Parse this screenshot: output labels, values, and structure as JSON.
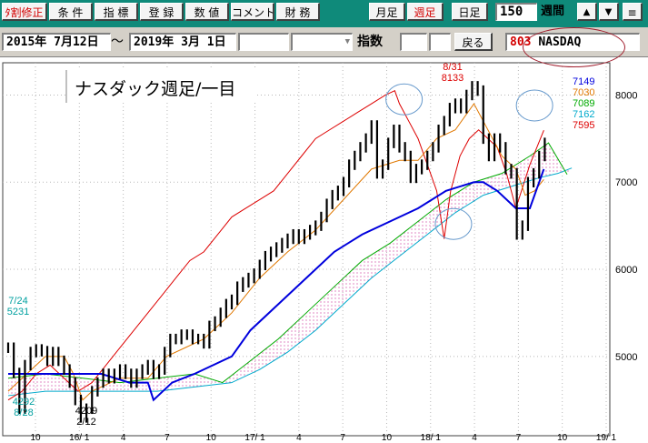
{
  "toolbar": {
    "buttons": [
      {
        "label": "ﾀ割修正",
        "red": true
      },
      {
        "label": "条 件"
      },
      {
        "label": "指 標"
      },
      {
        "label": "登 録"
      },
      {
        "label": "数 値"
      },
      {
        "label": "コメント"
      },
      {
        "label": "財 務"
      },
      {
        "label": "月足"
      },
      {
        "label": "週足",
        "red": true
      },
      {
        "label": "日足"
      }
    ],
    "period_value": "150",
    "period_unit": "週間",
    "up_icon": "▲",
    "down_icon": "▼",
    "menu_icon": "≡"
  },
  "range_bar": {
    "date_from": "2015年 7月12日",
    "tilde": "～",
    "date_to": "2019年 3月 1日",
    "dropdown_icon": "▼",
    "index_label": "指数",
    "back_button": "戻る",
    "code": "803",
    "symbol": "NASDAQ"
  },
  "colors": {
    "toolbar_bg": "#0f8a7a",
    "price_bar": "#000000",
    "ma_short": "#e07800",
    "ma_long": "#0000dd",
    "rsi_like": "#dd0000",
    "span_green": "#00aa00",
    "span_cyan": "#00aacc",
    "cloud": "#cc3399",
    "annotation_circle": "#6699cc"
  },
  "chart_data": {
    "type": "line",
    "title": "ナスダック週足/一目",
    "ylim": [
      4090,
      8370
    ],
    "y_ticks": [
      5000,
      6000,
      7000,
      8000
    ],
    "x_ticks": [
      "10",
      "16/ 1",
      "4",
      "7",
      "10",
      "17/ 1",
      "4",
      "7",
      "10",
      "18/ 1",
      "4",
      "7",
      "10",
      "19/ 1"
    ],
    "legend_values": [
      {
        "value": "7149",
        "color": "#0000dd"
      },
      {
        "value": "7030",
        "color": "#e07800"
      },
      {
        "value": "7089",
        "color": "#00aa00"
      },
      {
        "value": "7162",
        "color": "#00aacc"
      },
      {
        "value": "7595",
        "color": "#dd0000"
      }
    ],
    "annotations": [
      {
        "label": "8/31",
        "value": "8133",
        "color": "#dd0000"
      },
      {
        "label": "4209",
        "value": "2/12",
        "color": "#000000"
      },
      {
        "label": "7/24",
        "value": "5231",
        "color": "#00a0a0"
      },
      {
        "label": "4292",
        "value": "8/28",
        "color": "#00a0a0"
      }
    ],
    "series": [
      {
        "key": "price",
        "weekly_approx": [
          [
            0,
            5100
          ],
          [
            6,
            4810
          ],
          [
            12,
            4400
          ],
          [
            18,
            4900
          ],
          [
            24,
            5050
          ],
          [
            30,
            5080
          ],
          [
            36,
            5060
          ],
          [
            42,
            4950
          ],
          [
            48,
            5050
          ],
          [
            54,
            4950
          ],
          [
            60,
            4850
          ],
          [
            66,
            4700
          ],
          [
            72,
            4500
          ],
          [
            78,
            4300
          ],
          [
            84,
            4400
          ],
          [
            90,
            4600
          ],
          [
            96,
            4700
          ],
          [
            102,
            4800
          ],
          [
            108,
            4750
          ],
          [
            114,
            4800
          ],
          [
            120,
            4850
          ],
          [
            126,
            4800
          ],
          [
            132,
            4700
          ],
          [
            138,
            4800
          ],
          [
            144,
            4850
          ],
          [
            150,
            4900
          ],
          [
            156,
            4800
          ],
          [
            162,
            4850
          ],
          [
            168,
            5050
          ],
          [
            174,
            5200
          ],
          [
            180,
            5200
          ],
          [
            186,
            5250
          ],
          [
            192,
            5250
          ],
          [
            198,
            5200
          ],
          [
            204,
            5200
          ],
          [
            210,
            5150
          ],
          [
            216,
            5350
          ],
          [
            222,
            5400
          ],
          [
            228,
            5500
          ],
          [
            234,
            5600
          ],
          [
            240,
            5650
          ],
          [
            246,
            5800
          ],
          [
            252,
            5850
          ],
          [
            258,
            5900
          ],
          [
            264,
            5950
          ],
          [
            270,
            6050
          ],
          [
            276,
            6150
          ],
          [
            282,
            6200
          ],
          [
            288,
            6250
          ],
          [
            294,
            6300
          ],
          [
            300,
            6350
          ],
          [
            306,
            6400
          ],
          [
            312,
            6350
          ],
          [
            318,
            6400
          ],
          [
            324,
            6450
          ],
          [
            330,
            6500
          ],
          [
            336,
            6600
          ],
          [
            342,
            6750
          ],
          [
            348,
            6850
          ],
          [
            354,
            6900
          ],
          [
            360,
            7000
          ],
          [
            366,
            7200
          ],
          [
            372,
            7300
          ],
          [
            378,
            7400
          ],
          [
            384,
            7500
          ],
          [
            390,
            7650
          ],
          [
            396,
            7100
          ],
          [
            402,
            7200
          ],
          [
            408,
            7450
          ],
          [
            414,
            7600
          ],
          [
            420,
            7400
          ],
          [
            426,
            7300
          ],
          [
            432,
            7050
          ],
          [
            438,
            7150
          ],
          [
            444,
            7200
          ],
          [
            450,
            7300
          ],
          [
            456,
            7400
          ],
          [
            462,
            7600
          ],
          [
            468,
            7700
          ],
          [
            474,
            7850
          ],
          [
            480,
            7900
          ],
          [
            486,
            7850
          ],
          [
            492,
            8000
          ],
          [
            498,
            8100
          ],
          [
            504,
            8050
          ],
          [
            510,
            7500
          ],
          [
            516,
            7300
          ],
          [
            522,
            7500
          ],
          [
            528,
            7400
          ],
          [
            534,
            7150
          ],
          [
            540,
            7100
          ],
          [
            546,
            6400
          ],
          [
            552,
            6500
          ],
          [
            558,
            7000
          ],
          [
            564,
            7100
          ],
          [
            570,
            7300
          ],
          [
            576,
            7450
          ]
        ]
      },
      {
        "key": "ma_short",
        "weekly_approx": [
          [
            0,
            4600
          ],
          [
            20,
            4800
          ],
          [
            40,
            5000
          ],
          [
            60,
            5000
          ],
          [
            70,
            4800
          ],
          [
            80,
            4500
          ],
          [
            90,
            4600
          ],
          [
            100,
            4650
          ],
          [
            120,
            4750
          ],
          [
            150,
            4750
          ],
          [
            170,
            5000
          ],
          [
            190,
            5100
          ],
          [
            210,
            5200
          ],
          [
            240,
            5500
          ],
          [
            270,
            5900
          ],
          [
            300,
            6200
          ],
          [
            330,
            6450
          ],
          [
            360,
            6800
          ],
          [
            390,
            7150
          ],
          [
            420,
            7250
          ],
          [
            440,
            7250
          ],
          [
            460,
            7500
          ],
          [
            480,
            7600
          ],
          [
            500,
            7900
          ],
          [
            510,
            7700
          ],
          [
            520,
            7500
          ],
          [
            530,
            7300
          ],
          [
            545,
            7150
          ],
          [
            555,
            6850
          ],
          [
            565,
            6900
          ],
          [
            575,
            7030
          ]
        ]
      },
      {
        "key": "ma_long",
        "weekly_approx": [
          [
            0,
            4800
          ],
          [
            100,
            4800
          ],
          [
            130,
            4700
          ],
          [
            150,
            4700
          ],
          [
            156,
            4500
          ],
          [
            176,
            4700
          ],
          [
            200,
            4800
          ],
          [
            240,
            5000
          ],
          [
            260,
            5300
          ],
          [
            290,
            5600
          ],
          [
            320,
            5900
          ],
          [
            350,
            6200
          ],
          [
            380,
            6400
          ],
          [
            410,
            6550
          ],
          [
            440,
            6700
          ],
          [
            470,
            6900
          ],
          [
            500,
            7000
          ],
          [
            510,
            7000
          ],
          [
            525,
            6900
          ],
          [
            545,
            6700
          ],
          [
            560,
            6700
          ],
          [
            575,
            7149
          ]
        ]
      },
      {
        "key": "rsi_like",
        "weekly_approx": [
          [
            0,
            4500
          ],
          [
            15,
            4600
          ],
          [
            30,
            4800
          ],
          [
            45,
            4900
          ],
          [
            60,
            4750
          ],
          [
            75,
            4600
          ],
          [
            90,
            4700
          ],
          [
            105,
            4900
          ],
          [
            120,
            5100
          ],
          [
            135,
            5300
          ],
          [
            150,
            5500
          ],
          [
            165,
            5700
          ],
          [
            180,
            5900
          ],
          [
            195,
            6100
          ],
          [
            210,
            6200
          ],
          [
            225,
            6400
          ],
          [
            240,
            6600
          ],
          [
            255,
            6700
          ],
          [
            270,
            6800
          ],
          [
            285,
            6900
          ],
          [
            300,
            7100
          ],
          [
            315,
            7300
          ],
          [
            330,
            7500
          ],
          [
            345,
            7600
          ],
          [
            360,
            7700
          ],
          [
            375,
            7800
          ],
          [
            390,
            7900
          ],
          [
            405,
            8000
          ],
          [
            415,
            8050
          ],
          [
            420,
            7900
          ],
          [
            430,
            7700
          ],
          [
            440,
            7500
          ],
          [
            450,
            7200
          ],
          [
            460,
            6900
          ],
          [
            468,
            6350
          ],
          [
            475,
            6900
          ],
          [
            485,
            7300
          ],
          [
            495,
            7500
          ],
          [
            505,
            7600
          ],
          [
            515,
            7500
          ],
          [
            525,
            7400
          ],
          [
            535,
            7100
          ],
          [
            545,
            6700
          ],
          [
            560,
            7200
          ],
          [
            575,
            7595
          ]
        ]
      },
      {
        "key": "span_green",
        "weekly_approx": [
          [
            0,
            4700
          ],
          [
            40,
            4750
          ],
          [
            80,
            4700
          ],
          [
            120,
            4650
          ],
          [
            160,
            4700
          ],
          [
            200,
            4750
          ],
          [
            240,
            4900
          ],
          [
            270,
            5150
          ],
          [
            300,
            5400
          ],
          [
            330,
            5600
          ],
          [
            360,
            5900
          ],
          [
            390,
            6200
          ],
          [
            420,
            6400
          ],
          [
            450,
            6600
          ],
          [
            480,
            6800
          ],
          [
            510,
            7000
          ],
          [
            540,
            7100
          ],
          [
            570,
            7250
          ],
          [
            590,
            7200
          ],
          [
            605,
            7150
          ]
        ]
      },
      {
        "key": "span_cyan",
        "weekly_approx": [
          [
            0,
            4550
          ],
          [
            40,
            4600
          ],
          [
            80,
            4600
          ],
          [
            120,
            4600
          ],
          [
            160,
            4600
          ],
          [
            200,
            4650
          ],
          [
            240,
            4700
          ],
          [
            270,
            4850
          ],
          [
            300,
            5050
          ],
          [
            330,
            5300
          ],
          [
            360,
            5600
          ],
          [
            390,
            5900
          ],
          [
            420,
            6150
          ],
          [
            450,
            6400
          ],
          [
            480,
            6650
          ],
          [
            510,
            6850
          ],
          [
            540,
            6950
          ],
          [
            570,
            7050
          ],
          [
            590,
            7100
          ],
          [
            605,
            7162
          ]
        ]
      },
      {
        "key": "span_green_b",
        "weekly_approx": [
          [
            0,
            4750
          ],
          [
            40,
            4800
          ],
          [
            80,
            4750
          ],
          [
            120,
            4700
          ],
          [
            160,
            4750
          ],
          [
            200,
            4800
          ],
          [
            230,
            4700
          ],
          [
            260,
            4950
          ],
          [
            290,
            5200
          ],
          [
            320,
            5500
          ],
          [
            350,
            5800
          ],
          [
            380,
            6100
          ],
          [
            410,
            6300
          ],
          [
            440,
            6550
          ],
          [
            470,
            6800
          ],
          [
            500,
            7000
          ],
          [
            530,
            7100
          ],
          [
            560,
            7300
          ],
          [
            580,
            7450
          ],
          [
            600,
            7089
          ]
        ]
      }
    ]
  }
}
